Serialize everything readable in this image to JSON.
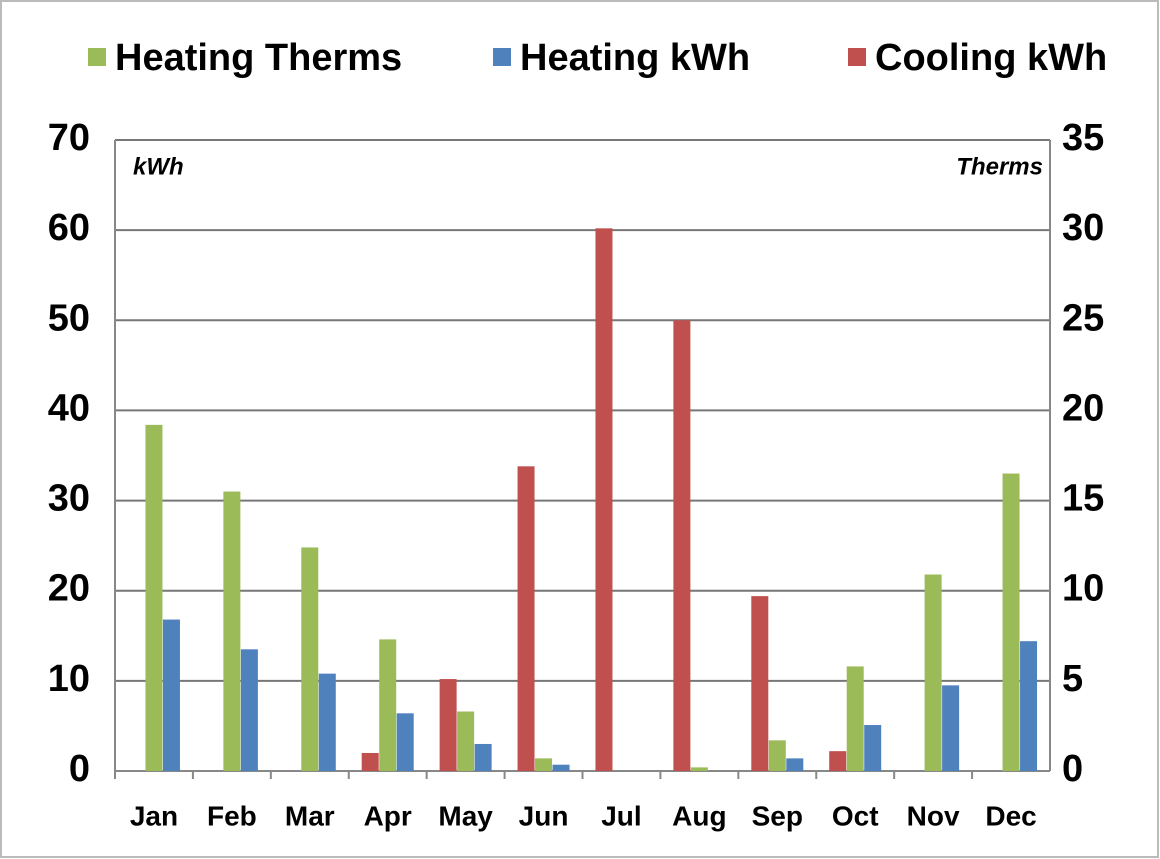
{
  "chart_data": {
    "type": "bar",
    "categories": [
      "Jan",
      "Feb",
      "Mar",
      "Apr",
      "May",
      "Jun",
      "Jul",
      "Aug",
      "Sep",
      "Oct",
      "Nov",
      "Dec"
    ],
    "series": [
      {
        "name": "Heating Therms",
        "color": "#9bbb59",
        "axis": "y2",
        "values": [
          19.2,
          15.5,
          12.4,
          7.3,
          3.3,
          0.7,
          0,
          0.2,
          1.7,
          5.8,
          10.9,
          16.5
        ]
      },
      {
        "name": "Heating kWh",
        "color": "#4f81bd",
        "values": [
          16.8,
          13.5,
          10.8,
          6.4,
          3.0,
          0.7,
          0,
          0,
          1.4,
          5.1,
          9.5,
          14.4
        ]
      },
      {
        "name": "Cooling kWh",
        "color": "#c0504d",
        "values": [
          0,
          0,
          0,
          2.0,
          10.2,
          33.8,
          60.2,
          50,
          19.4,
          2.2,
          0,
          0
        ]
      }
    ],
    "y_label": "kWh",
    "y2_label": "Therms",
    "ylim": [
      0,
      70
    ],
    "yticks": [
      0,
      10,
      20,
      30,
      40,
      50,
      60,
      70
    ],
    "y2lim": [
      0,
      35
    ],
    "y2ticks": [
      0,
      5,
      10,
      15,
      20,
      25,
      30,
      35
    ],
    "grid": true,
    "legend": "top"
  }
}
